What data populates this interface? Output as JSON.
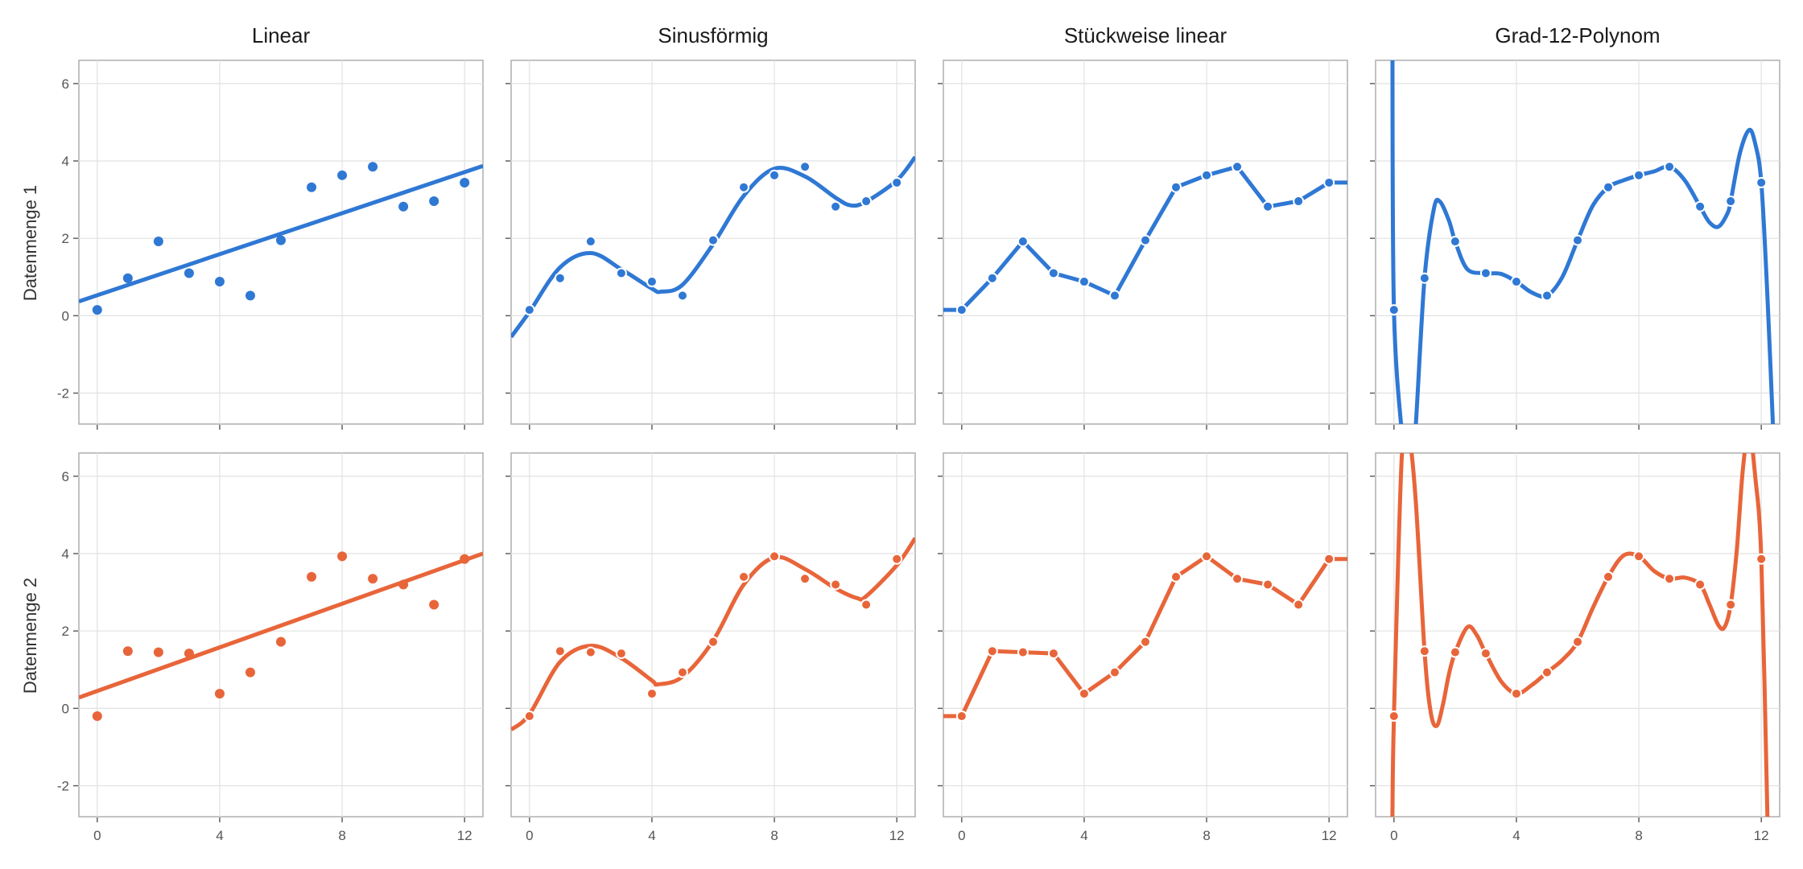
{
  "columns": [
    "Linear",
    "Sinusförmig",
    "Stückweise linear",
    "Grad-12-Polynom"
  ],
  "rows": [
    "Datenmenge 1",
    "Datenmenge 2"
  ],
  "colors": {
    "series1": "#2f78d4",
    "series2": "#e8653a",
    "grid": "#e2e2e2",
    "frame": "#b3b3b3"
  },
  "chart_data": {
    "type": "scatter",
    "layout": "facet-grid",
    "x": [
      0,
      1,
      2,
      3,
      4,
      5,
      6,
      7,
      8,
      9,
      10,
      11,
      12
    ],
    "xlim": [
      -0.6,
      12.6
    ],
    "ylim": [
      -2.8,
      6.6
    ],
    "x_ticks": [
      0,
      4,
      8,
      12
    ],
    "y_ticks": [
      -2,
      0,
      2,
      4,
      6
    ],
    "grid": true,
    "series": [
      {
        "name": "Datenmenge 1",
        "color": "#2f78d4",
        "y": [
          0.15,
          0.97,
          1.92,
          1.1,
          0.88,
          0.52,
          1.95,
          3.32,
          3.63,
          3.85,
          2.82,
          2.96,
          3.44
        ],
        "fits": {
          "Linear": {
            "type": "line",
            "x": [
              -0.6,
              12.6
            ],
            "y": [
              0.37,
              3.87
            ]
          },
          "Sinusförmig": {
            "type": "smooth",
            "x": [
              -0.6,
              0,
              1,
              2,
              3,
              4,
              4.3,
              5,
              6,
              7,
              8,
              9,
              10,
              10.5,
              11,
              12,
              12.6
            ],
            "y": [
              -0.55,
              0.1,
              1.25,
              1.62,
              1.2,
              0.7,
              0.62,
              0.8,
              1.85,
              3.1,
              3.8,
              3.6,
              3.05,
              2.85,
              2.95,
              3.5,
              4.1
            ]
          },
          "Stückweise linear": {
            "type": "segments",
            "x": [
              -0.6,
              0,
              1,
              2,
              3,
              4,
              5,
              6,
              7,
              8,
              9,
              10,
              11,
              12,
              12.6
            ],
            "y": [
              0.15,
              0.15,
              0.97,
              1.92,
              1.1,
              0.88,
              0.52,
              1.95,
              3.32,
              3.63,
              3.85,
              2.82,
              2.96,
              3.44,
              3.44
            ]
          },
          "Grad-12-Polynom": {
            "type": "smooth",
            "x": [
              -0.05,
              0,
              0.3,
              0.5,
              0.7,
              1,
              1.3,
              1.5,
              1.8,
              2,
              2.4,
              3,
              3.5,
              4,
              4.5,
              5,
              5.5,
              6,
              6.5,
              7,
              7.5,
              8,
              8.5,
              9,
              9.5,
              10,
              10.3,
              10.6,
              10.9,
              11,
              11.3,
              11.6,
              11.8,
              12,
              12.2,
              12.4
            ],
            "y": [
              7.5,
              0.15,
              -3.4,
              -4.8,
              -3.0,
              0.97,
              2.75,
              2.95,
              2.45,
              1.92,
              1.2,
              1.1,
              1.08,
              0.88,
              0.6,
              0.52,
              1.0,
              1.95,
              2.85,
              3.32,
              3.5,
              3.63,
              3.73,
              3.85,
              3.5,
              2.82,
              2.42,
              2.3,
              2.65,
              2.96,
              4.2,
              4.8,
              4.45,
              3.44,
              0.5,
              -3.2
            ]
          }
        }
      },
      {
        "name": "Datenmenge 2",
        "color": "#e8653a",
        "y": [
          -0.2,
          1.48,
          1.45,
          1.42,
          0.38,
          0.93,
          1.72,
          3.4,
          3.93,
          3.35,
          3.2,
          2.68,
          3.86
        ],
        "fits": {
          "Linear": {
            "type": "line",
            "x": [
              -0.6,
              12.6
            ],
            "y": [
              0.28,
              4.0
            ]
          },
          "Sinusförmig": {
            "type": "smooth",
            "x": [
              -0.6,
              0,
              1,
              2,
              3,
              4,
              4.2,
              5,
              6,
              7,
              8,
              9,
              10,
              10.7,
              11,
              12,
              12.6
            ],
            "y": [
              -0.55,
              -0.15,
              1.2,
              1.62,
              1.3,
              0.72,
              0.62,
              0.82,
              1.75,
              3.2,
              3.9,
              3.6,
              3.1,
              2.85,
              2.9,
              3.7,
              4.4
            ]
          },
          "Stückweise linear": {
            "type": "segments",
            "x": [
              -0.6,
              0,
              1,
              2,
              3,
              4,
              5,
              6,
              7,
              8,
              9,
              10,
              11,
              12,
              12.6
            ],
            "y": [
              -0.2,
              -0.2,
              1.48,
              1.45,
              1.42,
              0.38,
              0.93,
              1.72,
              3.4,
              3.93,
              3.35,
              3.2,
              2.68,
              3.86,
              3.86
            ]
          },
          "Grad-12-Polynom": {
            "type": "smooth",
            "x": [
              -0.05,
              0,
              0.25,
              0.45,
              0.7,
              1,
              1.2,
              1.4,
              1.6,
              1.8,
              2,
              2.4,
              2.7,
              3,
              3.5,
              4,
              4.5,
              5,
              5.5,
              6,
              6.5,
              7,
              7.5,
              8,
              8.5,
              9,
              9.5,
              10,
              10.3,
              10.6,
              10.8,
              11,
              11.2,
              11.4,
              11.6,
              11.8,
              12,
              12.2
            ],
            "y": [
              -2.8,
              -0.2,
              6.4,
              7.2,
              5.5,
              1.48,
              -0.1,
              -0.45,
              0.1,
              0.9,
              1.45,
              2.1,
              1.9,
              1.42,
              0.7,
              0.38,
              0.6,
              0.93,
              1.25,
              1.72,
              2.6,
              3.4,
              3.95,
              3.93,
              3.55,
              3.35,
              3.38,
              3.2,
              2.7,
              2.15,
              2.1,
              2.68,
              4.1,
              6.2,
              7.2,
              6.0,
              3.86,
              -2.8
            ]
          }
        }
      }
    ]
  }
}
